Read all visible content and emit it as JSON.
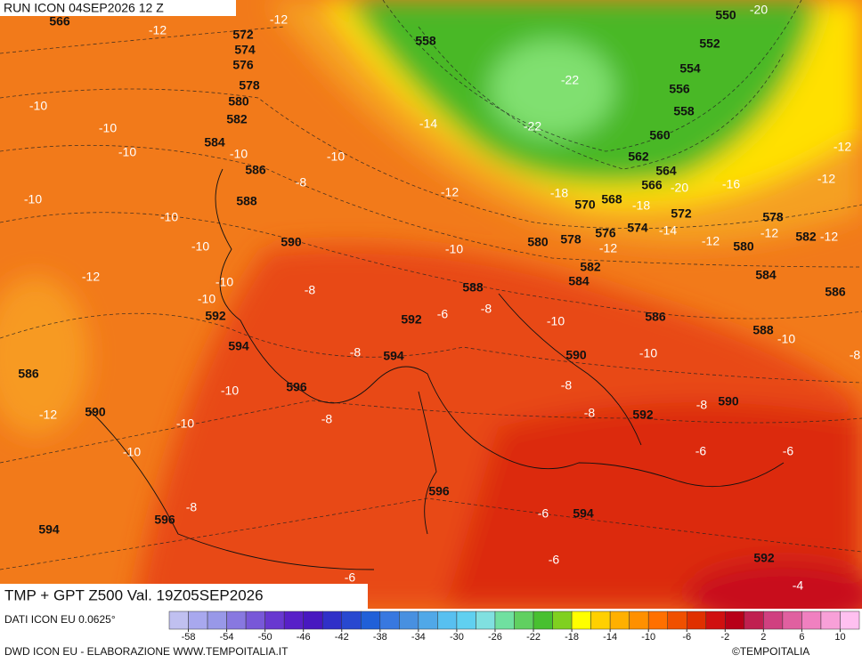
{
  "header": {
    "run": "RUN ICON 04SEP2026 12 Z"
  },
  "map": {
    "geopotential_labels": [
      566,
      572,
      574,
      576,
      578,
      580,
      582,
      584,
      586,
      588,
      590,
      592,
      594,
      596,
      590,
      586,
      596,
      594,
      594,
      592,
      588,
      580,
      578,
      582,
      584,
      576,
      574,
      568,
      570,
      566,
      564,
      562,
      560,
      558,
      556,
      554,
      552,
      550,
      558,
      572,
      578,
      580,
      582,
      584,
      586,
      588,
      590,
      592,
      590,
      586,
      596,
      594,
      592
    ],
    "temperature_labels": [
      -12,
      -12,
      -10,
      -10,
      -10,
      -10,
      -10,
      -8,
      -14,
      -12,
      -10,
      -10,
      -10,
      -12,
      -10,
      -10,
      -8,
      -10,
      -22,
      -22,
      -20,
      -18,
      -18,
      -20,
      -16,
      -14,
      -12,
      -12,
      -12,
      -12,
      -12,
      -12,
      -6,
      -8,
      -10,
      -10,
      -10,
      -8,
      -8,
      -8,
      -8,
      -8,
      -10,
      -8,
      -10,
      -12,
      -10,
      -8,
      -6,
      -6,
      -6,
      -6,
      -6,
      -4
    ]
  },
  "footer": {
    "title": "TMP + GPT Z500 Val. 19Z05SEP2026",
    "source": "DATI ICON EU 0.0625°",
    "credit": "DWD ICON EU - ELABORAZIONE WWW.TEMPOITALIA.IT",
    "copyright": "©TEMPOITALIA"
  },
  "colorbar": {
    "lim": [
      -60,
      12
    ],
    "ticks": [
      -58,
      -54,
      -50,
      -46,
      -42,
      -38,
      -34,
      -30,
      -26,
      -22,
      -18,
      -14,
      -10,
      -6,
      -2,
      2,
      6,
      10
    ],
    "colors": [
      "#c0c0f0",
      "#a8a8ee",
      "#9898e8",
      "#8878e0",
      "#7858d8",
      "#6838d0",
      "#5820c8",
      "#4818c0",
      "#3030c8",
      "#2848d0",
      "#2060d8",
      "#3878e0",
      "#4890e0",
      "#50a8e8",
      "#58c0f0",
      "#60d0f0",
      "#80e0e0",
      "#70e0a0",
      "#60d060",
      "#48c030",
      "#80d020",
      "#ffff00",
      "#ffd000",
      "#ffb000",
      "#ff9000",
      "#ff7000",
      "#f05000",
      "#e03000",
      "#d01010",
      "#b80018",
      "#c02050",
      "#d04080",
      "#e060a0",
      "#f080c0",
      "#f8a0d8",
      "#ffc0f0"
    ]
  }
}
